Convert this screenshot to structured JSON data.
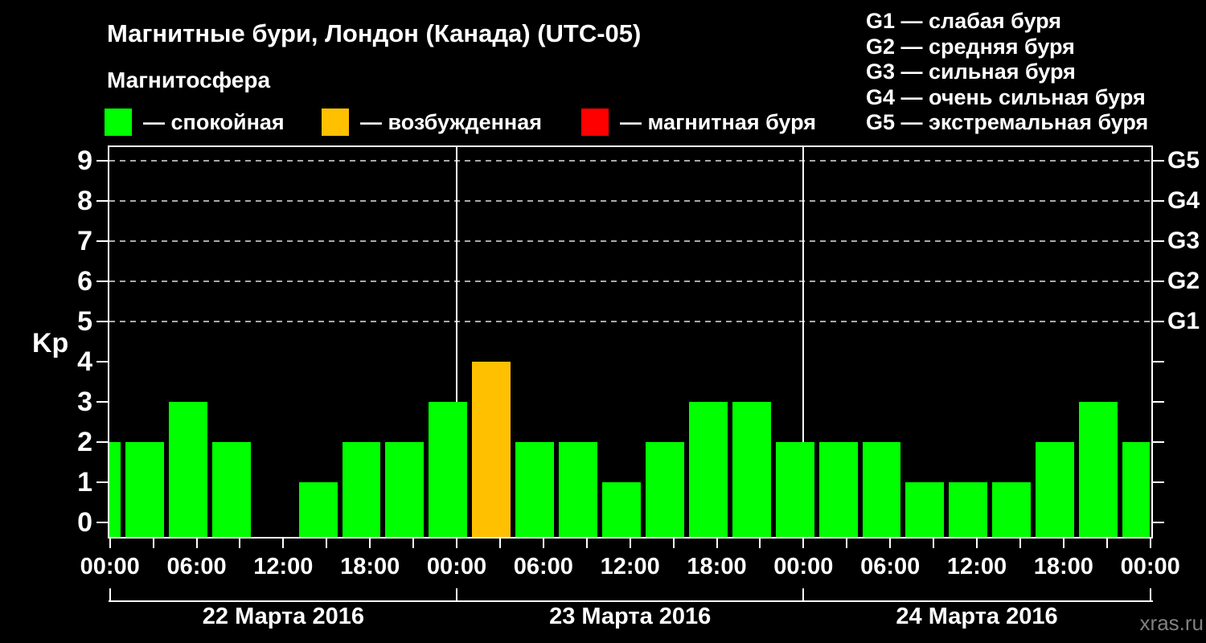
{
  "title": "Магнитные бури, Лондон (Канада) (UTC-05)",
  "subtitle": "Магнитосфера",
  "legend": {
    "items": [
      {
        "name": "quiet",
        "color": "#00ff00",
        "label": "— спокойная"
      },
      {
        "name": "excited",
        "color": "#ffc000",
        "label": "— возбужденная"
      },
      {
        "name": "storm",
        "color": "#ff0000",
        "label": "— магнитная буря"
      }
    ]
  },
  "storm_scale_legend": [
    "G1 — слабая буря",
    "G2 — средняя буря",
    "G3 — сильная буря",
    "G4 — очень сильная буря",
    "G5 — экстремальная буря"
  ],
  "watermark": "xras.ru",
  "chart_data": {
    "type": "bar",
    "ylabel": "Kp",
    "ylim": [
      0,
      9.4
    ],
    "grid": "dashed horizontal lines at Kp 5..9 only",
    "y_tick_labels": [
      "0",
      "1",
      "2",
      "3",
      "4",
      "5",
      "6",
      "7",
      "8",
      "9"
    ],
    "right_axis_labels": [
      {
        "kp": 5,
        "label": "G1"
      },
      {
        "kp": 6,
        "label": "G2"
      },
      {
        "kp": 7,
        "label": "G3"
      },
      {
        "kp": 8,
        "label": "G4"
      },
      {
        "kp": 9,
        "label": "G5"
      }
    ],
    "x_hours_range": [
      0,
      72
    ],
    "x_tick_step_hours": 3,
    "time_tick_labels": [
      "00:00",
      "06:00",
      "12:00",
      "18:00",
      "00:00",
      "06:00",
      "12:00",
      "18:00",
      "00:00",
      "06:00",
      "12:00",
      "18:00",
      "00:00"
    ],
    "leading_bar": {
      "kp": 2,
      "note": "partial bar clipped at left axis (end of previous day)"
    },
    "days": [
      {
        "date": "22 Марта 2016",
        "kp": [
          2,
          3,
          2,
          0,
          1,
          2,
          2,
          3
        ]
      },
      {
        "date": "23 Марта 2016",
        "kp": [
          4,
          2,
          2,
          1,
          2,
          3,
          3,
          2
        ]
      },
      {
        "date": "24 Марта 2016",
        "kp": [
          2,
          2,
          1,
          1,
          1,
          2,
          3,
          2
        ]
      }
    ],
    "bar_colors": {
      "quiet": "#00ff00",
      "excited": "#ffc000",
      "storm": "#ff0000"
    },
    "excited_min_kp": 4,
    "storm_min_kp": 5,
    "day_boundary_lines_hours": [
      24,
      48
    ]
  }
}
